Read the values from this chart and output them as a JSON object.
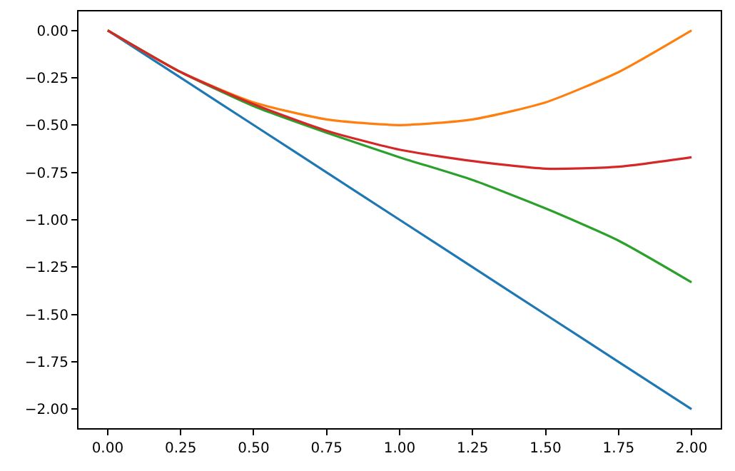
{
  "chart_data": {
    "type": "line",
    "x": [
      0,
      0.25,
      0.5,
      0.75,
      1,
      1.25,
      1.5,
      1.75,
      2
    ],
    "series": [
      {
        "color": "#1f77b4",
        "values": [
          0,
          -0.25,
          -0.5,
          -0.75,
          -1,
          -1.25,
          -1.5,
          -1.75,
          -2
        ]
      },
      {
        "color": "#ff7f0e",
        "values": [
          0,
          -0.22,
          -0.38,
          -0.47,
          -0.5,
          -0.47,
          -0.38,
          -0.22,
          0
        ]
      },
      {
        "color": "#2ca02c",
        "values": [
          0,
          -0.22,
          -0.4,
          -0.54,
          -0.67,
          -0.79,
          -0.94,
          -1.11,
          -1.33
        ]
      },
      {
        "color": "#d62728",
        "values": [
          0,
          -0.22,
          -0.39,
          -0.53,
          -0.63,
          -0.69,
          -0.73,
          -0.72,
          -0.67
        ]
      }
    ],
    "xlim": [
      -0.1,
      2.1
    ],
    "ylim": [
      -2.1,
      0.1
    ],
    "xticks": [
      {
        "value": 0,
        "label": "0.00"
      },
      {
        "value": 0.25,
        "label": "0.25"
      },
      {
        "value": 0.5,
        "label": "0.50"
      },
      {
        "value": 0.75,
        "label": "0.75"
      },
      {
        "value": 1,
        "label": "1.00"
      },
      {
        "value": 1.25,
        "label": "1.25"
      },
      {
        "value": 1.5,
        "label": "1.50"
      },
      {
        "value": 1.75,
        "label": "1.75"
      },
      {
        "value": 2,
        "label": "2.00"
      }
    ],
    "yticks": [
      {
        "value": 0,
        "label": "0.00"
      },
      {
        "value": -0.25,
        "label": "−0.25"
      },
      {
        "value": -0.5,
        "label": "−0.50"
      },
      {
        "value": -0.75,
        "label": "−0.75"
      },
      {
        "value": -1,
        "label": "−1.00"
      },
      {
        "value": -1.25,
        "label": "−1.25"
      },
      {
        "value": -1.5,
        "label": "−1.50"
      },
      {
        "value": -1.75,
        "label": "−1.75"
      },
      {
        "value": -2,
        "label": "−2.00"
      }
    ],
    "marker": "none",
    "line_style": "solid"
  }
}
